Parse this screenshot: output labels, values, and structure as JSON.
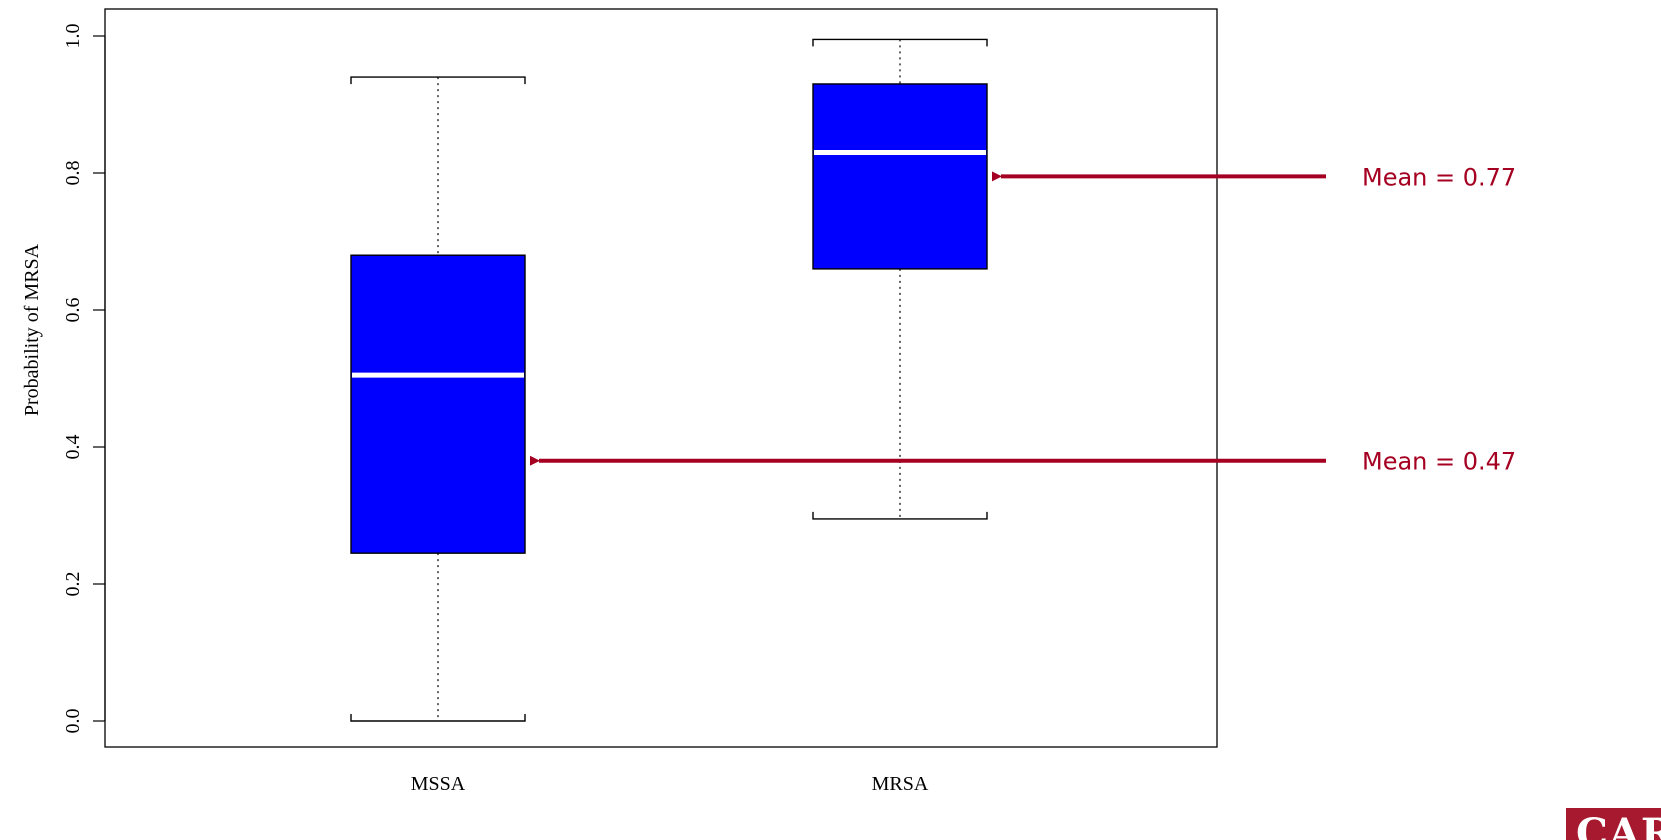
{
  "colors": {
    "box_fill": "#0000ff",
    "median_line": "#ffffff",
    "annotation": "#a50021",
    "axis": "#000000",
    "logo_bg": "#a6192e"
  },
  "chart_data": {
    "type": "boxplot",
    "title": "",
    "xlabel": "",
    "ylabel": "Probability of MRSA",
    "ylim": [
      0.0,
      1.0
    ],
    "yticks": [
      "0.0",
      "0.2",
      "0.4",
      "0.6",
      "0.8",
      "1.0"
    ],
    "grid": false,
    "categories": [
      "MSSA",
      "MRSA"
    ],
    "boxes": [
      {
        "category": "MSSA",
        "whisker_low": 0.0,
        "q1": 0.245,
        "median": 0.505,
        "q3": 0.68,
        "whisker_high": 0.94,
        "mean": 0.38,
        "annotation": "Mean = 0.47"
      },
      {
        "category": "MRSA",
        "whisker_low": 0.295,
        "q1": 0.66,
        "median": 0.83,
        "q3": 0.93,
        "whisker_high": 0.995,
        "mean": 0.795,
        "annotation": "Mean = 0.77"
      }
    ]
  },
  "logo": {
    "text": "CARDIFF"
  }
}
